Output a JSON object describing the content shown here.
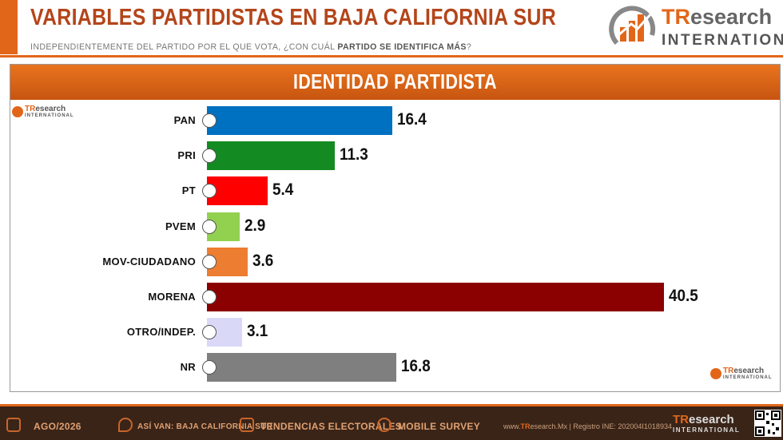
{
  "header": {
    "title": "VARIABLES PARTIDISTAS EN BAJA CALIFORNIA SUR",
    "subtitle_prefix": "INDEPENDIENTEMENTE DEL PARTIDO POR EL QUE VOTA, ¿CON CUÁL ",
    "subtitle_bold": "PARTIDO SE IDENTIFICA MÁS",
    "subtitle_suffix": "?"
  },
  "logo": {
    "tr": "TR",
    "research": "esearch",
    "international": "INTERNATIONAL"
  },
  "chart_data": {
    "type": "bar",
    "orientation": "horizontal",
    "title": "IDENTIDAD PARTIDISTA",
    "categories": [
      "PAN",
      "PRI",
      "PT",
      "PVEM",
      "MOV-CIUDADANO",
      "MORENA",
      "OTRO/INDEP.",
      "NR"
    ],
    "values": [
      16.4,
      11.3,
      5.4,
      2.9,
      3.6,
      40.5,
      3.1,
      16.8
    ],
    "colors": [
      "#0070c0",
      "#138a22",
      "#ff0000",
      "#92d050",
      "#ed7d31",
      "#8b0000",
      "#d9d9f7",
      "#7f7f7f"
    ],
    "icons": [
      "PAN",
      "PRI",
      "PT",
      "V",
      "MC",
      "morena",
      "otro",
      "?"
    ],
    "xlim": [
      0,
      40.5
    ],
    "grid": false,
    "legend": "none"
  },
  "footer": {
    "date": "AGO/2026",
    "asi_van": "ASÍ VAN: BAJA CALIFORNIA SUR",
    "tendencias": "TENDENCIAS ELECTORALES",
    "mobile": "MOBILE SURVEY",
    "web_prefix": "www.",
    "web_tr": "TR",
    "web_suffix": "esearch.Mx | Registro INE: 202004I1018934",
    "logo_tr": "TR",
    "logo_research": "esearch",
    "logo_international": "INTERNATIONAL"
  }
}
